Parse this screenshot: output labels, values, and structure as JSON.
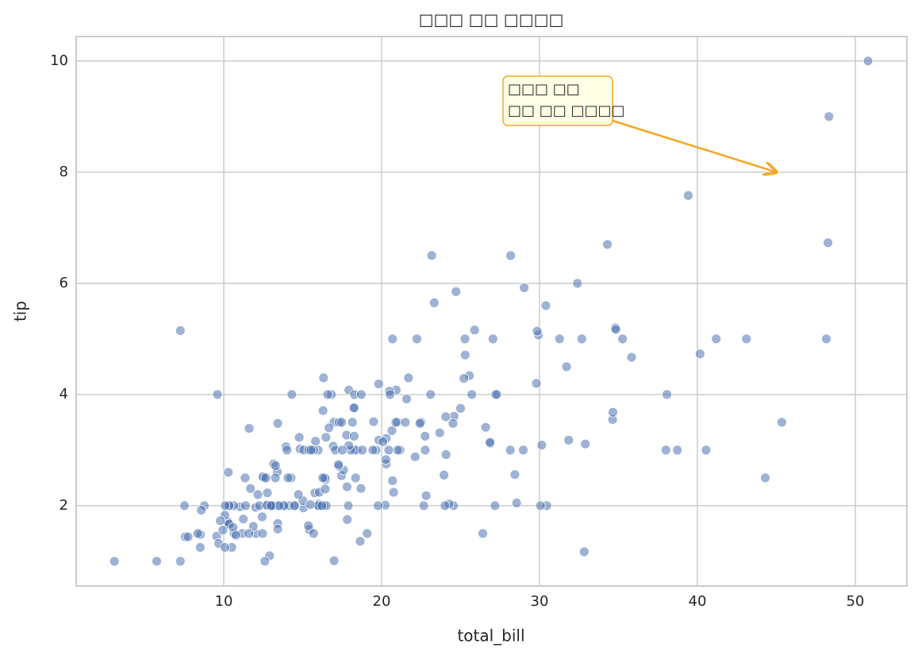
{
  "chart_data": {
    "type": "scatter",
    "title": "□□□ □□ □□□□",
    "x_label": "total_bill",
    "y_label": "tip",
    "color": "#4c72b0",
    "xlim": [
      0.65,
      53.27
    ],
    "ylim": [
      0.556,
      10.44
    ],
    "xticks": [
      10,
      20,
      30,
      40,
      50
    ],
    "yticks": [
      2,
      4,
      6,
      8,
      10
    ],
    "grid": true,
    "annotation": {
      "lines": [
        "□□□ □□",
        "□□ □□ □□□□"
      ],
      "xy": [
        45,
        8
      ],
      "color": "#f5a623"
    },
    "x": [
      16.99,
      10.34,
      21.01,
      23.68,
      24.59,
      25.29,
      8.77,
      26.88,
      15.04,
      14.78,
      10.27,
      35.26,
      15.42,
      18.43,
      14.83,
      21.58,
      10.33,
      16.29,
      16.97,
      20.65,
      17.92,
      20.29,
      15.77,
      39.42,
      19.82,
      17.81,
      13.37,
      12.69,
      21.7,
      19.65,
      9.55,
      18.35,
      15.06,
      20.69,
      17.78,
      24.06,
      16.31,
      16.93,
      18.69,
      31.27,
      16.04,
      17.46,
      13.94,
      9.68,
      30.4,
      18.29,
      22.23,
      32.4,
      28.55,
      18.04,
      12.54,
      10.29,
      34.81,
      9.94,
      25.56,
      19.49,
      38.01,
      26.41,
      11.24,
      48.27,
      20.29,
      13.81,
      11.02,
      18.29,
      17.59,
      20.08,
      16.45,
      3.07,
      20.23,
      15.01,
      12.02,
      17.07,
      26.86,
      25.28,
      14.73,
      10.51,
      17.92,
      27.2,
      22.76,
      17.29,
      19.44,
      16.66,
      10.07,
      32.68,
      15.98,
      34.83,
      13.03,
      18.28,
      24.71,
      21.16,
      28.97,
      22.49,
      5.75,
      16.32,
      22.75,
      40.17,
      27.28,
      12.03,
      21.01,
      12.46,
      11.35,
      15.38,
      44.3,
      22.42,
      20.92,
      15.36,
      20.49,
      25.21,
      18.24,
      14.31,
      14.0,
      7.25,
      38.07,
      23.95,
      25.71,
      17.31,
      29.93,
      10.65,
      12.43,
      24.08,
      11.69,
      13.42,
      14.26,
      15.95,
      12.48,
      29.8,
      8.52,
      14.52,
      11.38,
      22.82,
      19.08,
      20.27,
      11.17,
      12.26,
      18.26,
      8.51,
      10.33,
      14.15,
      16.0,
      13.16,
      17.47,
      34.3,
      41.19,
      27.05,
      16.43,
      8.35,
      18.64,
      11.87,
      9.78,
      7.51,
      14.07,
      13.13,
      17.26,
      24.55,
      19.77,
      29.85,
      48.17,
      25.0,
      13.39,
      16.49,
      21.5,
      12.66,
      16.21,
      13.81,
      17.51,
      24.52,
      20.76,
      31.71,
      10.59,
      10.63,
      50.81,
      15.81,
      7.25,
      31.85,
      16.82,
      32.9,
      17.89,
      14.48,
      9.6,
      34.63,
      34.65,
      23.33,
      45.35,
      23.17,
      40.55,
      20.69,
      20.9,
      30.46,
      18.15,
      23.1,
      15.69,
      19.81,
      28.44,
      15.48,
      16.58,
      7.56,
      10.34,
      43.11,
      13.0,
      13.51,
      18.71,
      12.74,
      13.0,
      16.4,
      20.53,
      16.47,
      26.59,
      38.73,
      24.27,
      12.76,
      30.06,
      25.89,
      48.33,
      13.27,
      28.17,
      12.9,
      28.15,
      11.59,
      7.74,
      30.14,
      12.16,
      13.42,
      8.58,
      15.98,
      13.42,
      16.27,
      10.09,
      20.45,
      13.28,
      22.12,
      24.01,
      15.69,
      11.61,
      10.77,
      15.53,
      10.07,
      12.6,
      32.83,
      35.83,
      29.03,
      27.18,
      22.67,
      17.82,
      18.78
    ],
    "values": [
      1.01,
      1.66,
      3.5,
      3.31,
      3.61,
      4.71,
      2.0,
      3.12,
      1.96,
      3.23,
      1.71,
      5.0,
      1.57,
      3.0,
      3.02,
      3.92,
      1.67,
      3.71,
      3.5,
      3.35,
      4.08,
      2.75,
      2.23,
      7.58,
      3.18,
      2.34,
      2.0,
      2.0,
      4.3,
      3.0,
      1.45,
      2.5,
      3.0,
      2.45,
      3.27,
      3.6,
      2.0,
      3.07,
      2.31,
      5.0,
      2.24,
      2.54,
      3.06,
      1.32,
      5.6,
      3.0,
      5.0,
      6.0,
      2.05,
      3.0,
      2.5,
      2.6,
      5.2,
      1.56,
      4.34,
      3.51,
      3.0,
      1.5,
      1.76,
      6.73,
      3.21,
      2.0,
      1.98,
      3.76,
      2.64,
      3.15,
      2.47,
      1.0,
      2.01,
      2.09,
      1.97,
      3.0,
      3.14,
      5.0,
      2.2,
      1.25,
      3.08,
      4.0,
      3.0,
      2.71,
      3.0,
      3.4,
      1.83,
      5.0,
      2.03,
      5.17,
      2.0,
      4.0,
      5.85,
      3.0,
      3.0,
      3.5,
      1.0,
      4.3,
      3.25,
      4.73,
      4.0,
      1.5,
      3.0,
      1.5,
      2.5,
      3.0,
      2.5,
      3.48,
      4.08,
      1.64,
      4.06,
      4.29,
      3.76,
      4.0,
      3.0,
      1.0,
      4.0,
      2.55,
      4.0,
      3.5,
      5.07,
      1.5,
      1.8,
      2.92,
      2.31,
      1.68,
      2.5,
      2.0,
      2.52,
      4.2,
      1.48,
      2.0,
      2.0,
      2.18,
      1.5,
      2.83,
      1.5,
      2.0,
      3.25,
      1.25,
      2.0,
      2.0,
      2.0,
      2.75,
      3.5,
      6.7,
      5.0,
      5.0,
      2.3,
      1.5,
      1.36,
      1.63,
      1.73,
      2.0,
      2.5,
      2.0,
      2.74,
      2.0,
      2.0,
      5.14,
      5.0,
      3.75,
      2.61,
      2.0,
      3.5,
      2.5,
      2.0,
      2.0,
      3.0,
      3.48,
      2.24,
      4.5,
      1.61,
      2.0,
      10.0,
      3.16,
      5.15,
      3.18,
      4.0,
      3.11,
      2.0,
      2.0,
      4.0,
      3.55,
      3.68,
      5.65,
      3.5,
      6.5,
      3.0,
      5.0,
      3.5,
      2.0,
      3.5,
      4.0,
      1.5,
      4.19,
      2.56,
      2.02,
      4.0,
      1.44,
      2.0,
      5.0,
      2.0,
      2.0,
      4.0,
      2.01,
      2.0,
      2.5,
      4.0,
      3.23,
      3.41,
      3.0,
      2.03,
      2.23,
      2.0,
      5.16,
      9.0,
      2.5,
      6.5,
      1.1,
      3.0,
      1.5,
      1.44,
      3.09,
      2.2,
      3.48,
      1.92,
      3.0,
      1.58,
      2.5,
      2.0,
      3.0,
      2.72,
      2.88,
      2.0,
      3.0,
      3.39,
      1.47,
      3.0,
      1.25,
      1.0,
      1.17,
      4.67,
      5.92,
      2.0,
      2.0,
      1.75,
      3.0
    ]
  }
}
